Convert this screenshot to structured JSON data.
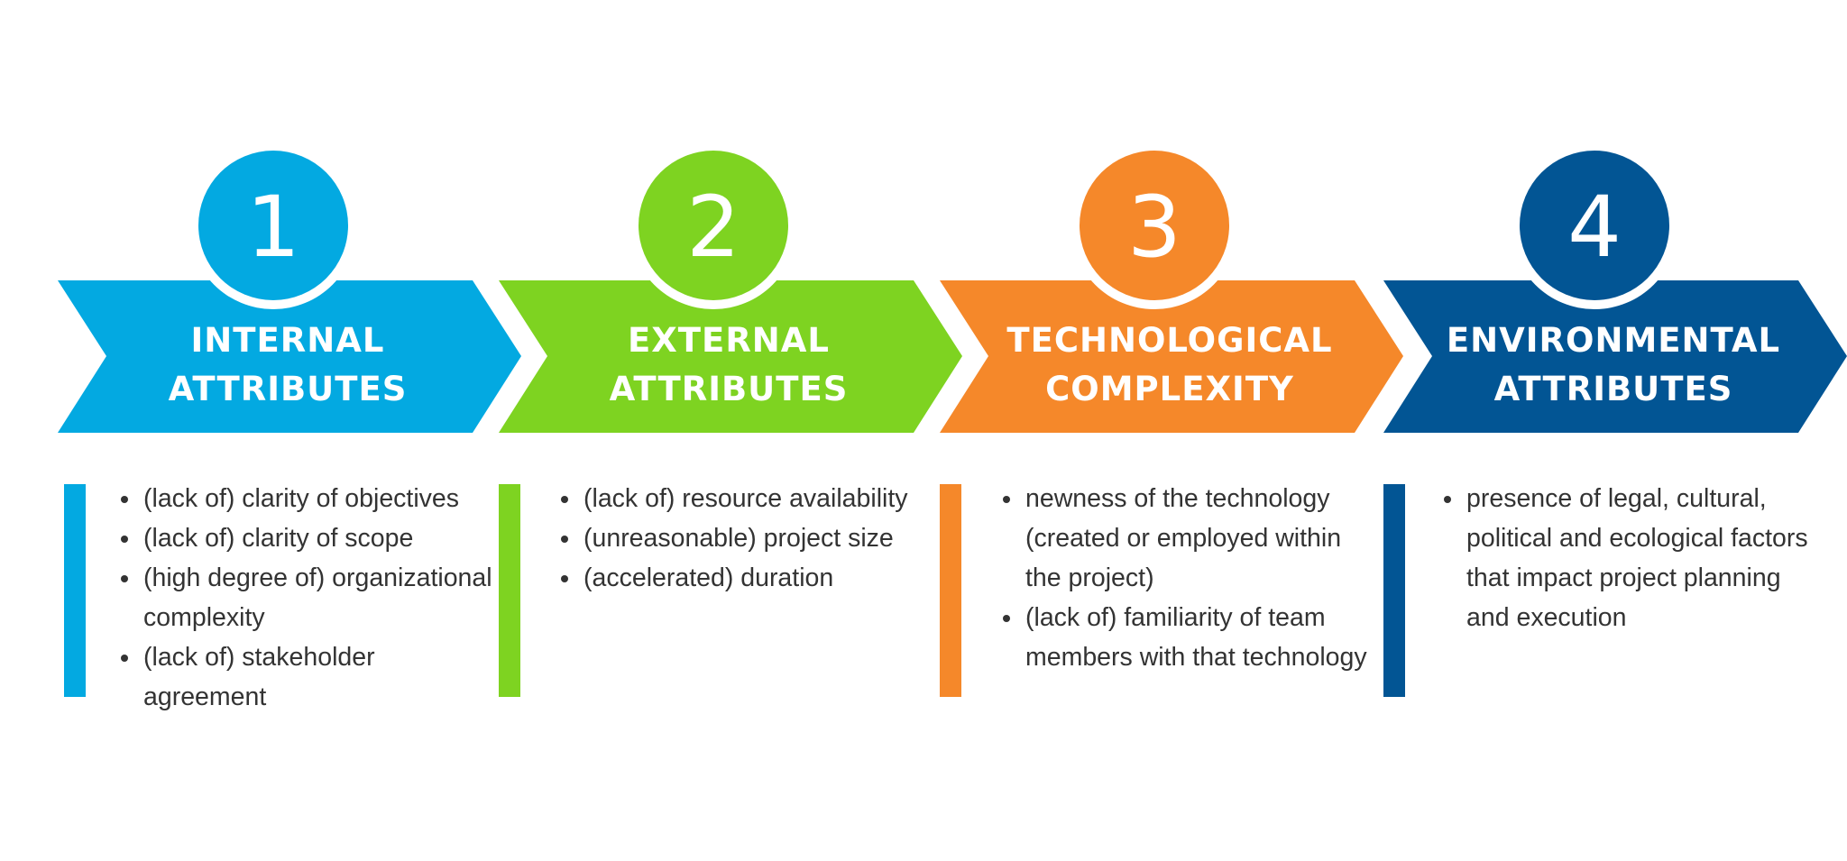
{
  "steps": [
    {
      "number": "1",
      "title_line1": "INTERNAL",
      "title_line2": "ATTRIBUTES",
      "color": "#03a9e1",
      "bullets": [
        "(lack of) clarity of objectives",
        "(lack of) clarity of scope",
        "(high degree of) organizational complexity",
        "(lack of) stakeholder agreement"
      ]
    },
    {
      "number": "2",
      "title_line1": "EXTERNAL",
      "title_line2": "ATTRIBUTES",
      "color": "#7ed321",
      "bullets": [
        "(lack of) resource availability",
        "(unreasonable) project size",
        "(accelerated) duration"
      ]
    },
    {
      "number": "3",
      "title_line1": "TECHNOLOGICAL",
      "title_line2": "COMPLEXITY",
      "color": "#f5882a",
      "bullets": [
        "newness of the technology (created or employed within the project)",
        "(lack of) familiarity of team members with that technology"
      ]
    },
    {
      "number": "4",
      "title_line1": "ENVIRONMENTAL",
      "title_line2": "ATTRIBUTES",
      "color": "#025594",
      "bullets": [
        "presence of legal, cultural, political and ecological factors that impact project planning and execution"
      ]
    }
  ]
}
